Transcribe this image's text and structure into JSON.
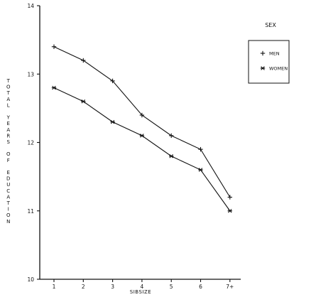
{
  "chart_data": {
    "type": "line",
    "x": [
      "1",
      "2",
      "3",
      "4",
      "5",
      "6",
      "7+"
    ],
    "xlabel": "SIBSIZE",
    "ylabel": "TOTAL YEARS OF EDUCATION",
    "ylim": [
      10,
      14
    ],
    "yticks": [
      "10",
      "11",
      "12",
      "13",
      "14"
    ],
    "grid": false,
    "legend": {
      "title": "SEX",
      "placement": "right",
      "entries": [
        {
          "name": "MEN",
          "marker": "plus"
        },
        {
          "name": "WOMEN",
          "marker": "asterisk"
        }
      ]
    },
    "series": [
      {
        "name": "MEN",
        "marker": "plus",
        "values": [
          13.4,
          13.2,
          12.9,
          12.4,
          12.1,
          11.9,
          11.2
        ]
      },
      {
        "name": "WOMEN",
        "marker": "asterisk",
        "values": [
          12.8,
          12.6,
          12.3,
          12.1,
          11.8,
          11.6,
          11.0
        ]
      }
    ]
  }
}
